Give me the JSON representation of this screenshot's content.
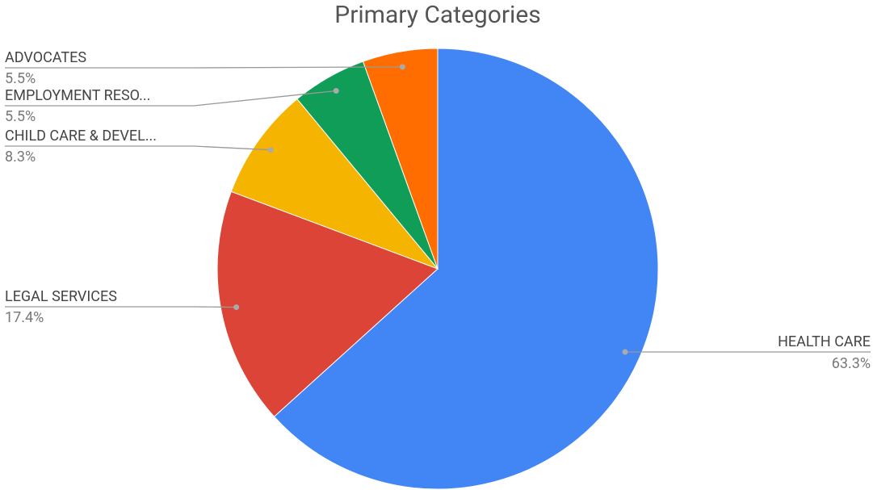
{
  "chart_data": {
    "type": "pie",
    "title": "Primary Categories",
    "categories": [
      "HEALTH CARE",
      "LEGAL SERVICES",
      "CHILD CARE & DEVEL...",
      "EMPLOYMENT RESO...",
      "ADVOCATES"
    ],
    "values": [
      63.3,
      17.4,
      8.3,
      5.5,
      5.5
    ],
    "value_labels": [
      "63.3%",
      "17.4%",
      "8.3%",
      "5.5%",
      "5.5%"
    ],
    "colors": [
      "#4285f4",
      "#db4437",
      "#f4b400",
      "#0f9d58",
      "#ff6d00"
    ]
  }
}
